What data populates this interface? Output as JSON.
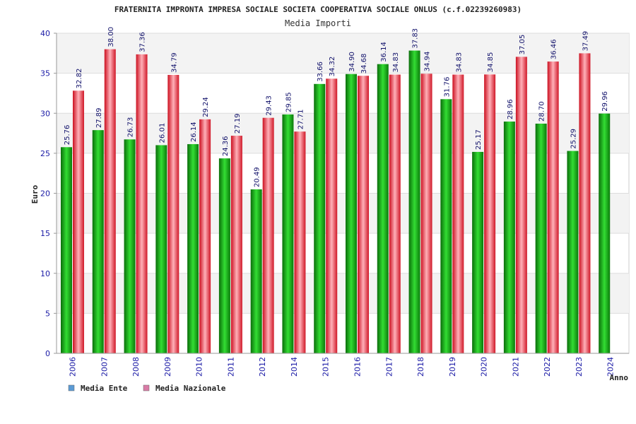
{
  "chart_data": {
    "type": "bar",
    "title": "FRATERNITA IMPRONTA IMPRESA SOCIALE SOCIETA COOPERATIVA SOCIALE ONLUS (c.f.02239260983)",
    "subtitle": "Media Importi",
    "ylabel": "Euro",
    "xlabel": "Anno",
    "ylim": [
      0,
      40
    ],
    "yticks": [
      "0",
      "5",
      "10",
      "15",
      "20",
      "25",
      "30",
      "35",
      "40"
    ],
    "legend_position": "bottom-left",
    "grid": true,
    "categories": [
      "2006",
      "2007",
      "2008",
      "2009",
      "2010",
      "2011",
      "2012",
      "2014",
      "2015",
      "2016",
      "2017",
      "2018",
      "2019",
      "2020",
      "2021",
      "2022",
      "2023",
      "2024"
    ],
    "series": [
      {
        "name": "Media Ente",
        "color": "#22aa22",
        "values": [
          25.76,
          27.89,
          26.73,
          26.01,
          26.14,
          24.36,
          20.49,
          29.85,
          33.66,
          34.9,
          36.14,
          37.83,
          31.76,
          25.17,
          28.96,
          28.7,
          25.29,
          29.96
        ],
        "labels": [
          "25.76",
          "27.89",
          "26.73",
          "26.01",
          "26.14",
          "24.36",
          "20.49",
          "29.85",
          "33.66",
          "34.90",
          "36.14",
          "37.83",
          "31.76",
          "25.17",
          "28.96",
          "28.70",
          "25.29",
          "29.96"
        ]
      },
      {
        "name": "Media Nazionale",
        "color": "#e8323c",
        "values": [
          32.82,
          38.0,
          37.36,
          34.79,
          29.24,
          27.19,
          29.43,
          27.71,
          34.32,
          34.68,
          34.83,
          34.94,
          34.83,
          34.85,
          37.05,
          36.46,
          37.49,
          null
        ],
        "labels": [
          "32.82",
          "38.00",
          "37.36",
          "34.79",
          "29.24",
          "27.19",
          "29.43",
          "27.71",
          "34.32",
          "34.68",
          "34.83",
          "34.94",
          "34.83",
          "34.85",
          "37.05",
          "36.46",
          "37.49",
          null
        ]
      }
    ],
    "legend_swatch_colors": [
      "#5b9bd5",
      "#d97ba6"
    ]
  }
}
